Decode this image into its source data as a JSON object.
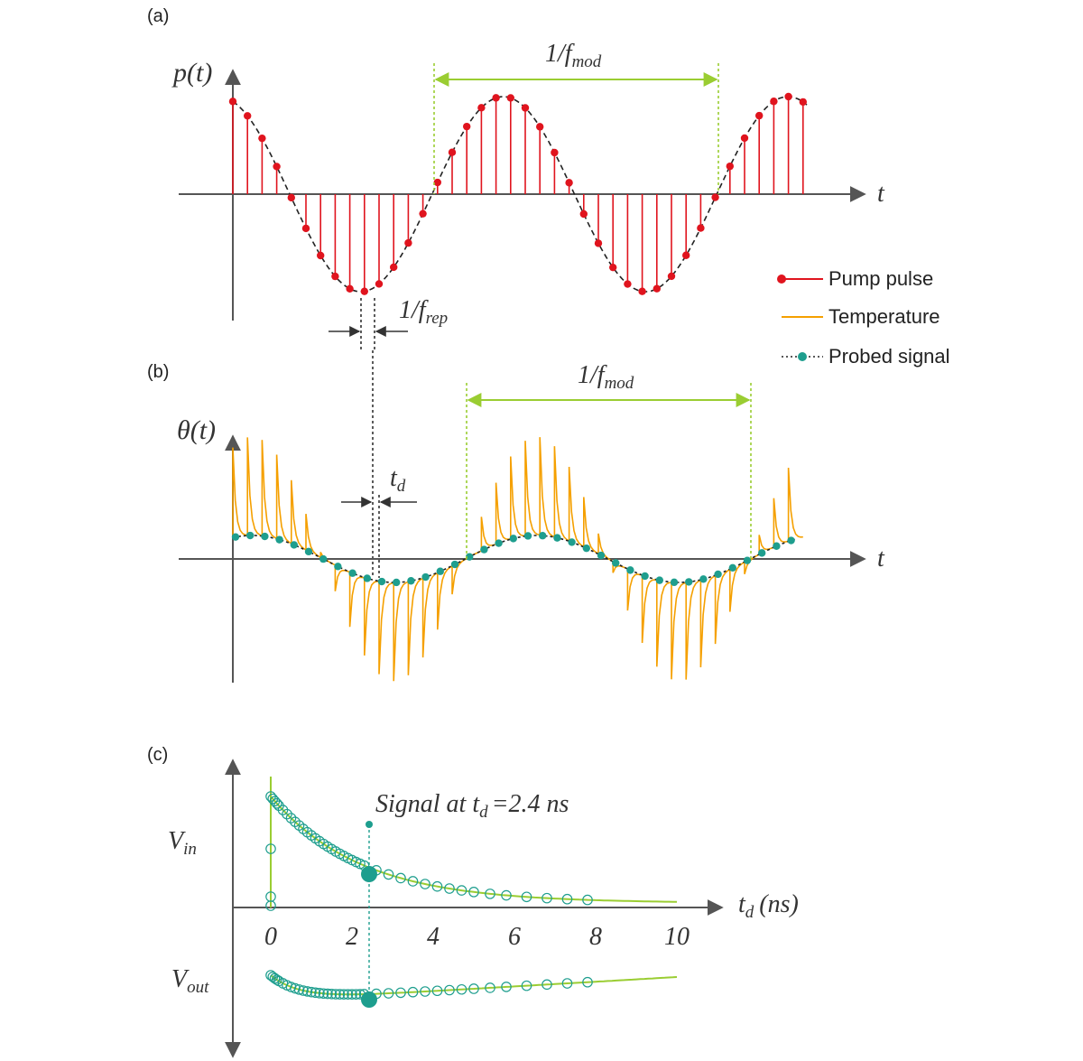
{
  "panels": {
    "a": {
      "label": "(a)",
      "y_label": "p(t)",
      "x_label": "t",
      "mod_period": {
        "base": "1/f",
        "sub": "mod"
      },
      "rep_period": {
        "base": "1/f",
        "sub": "rep"
      }
    },
    "b": {
      "label": "(b)",
      "y_label": "θ(t)",
      "x_label": "t",
      "mod_period": {
        "base": "1/f",
        "sub": "mod"
      },
      "delay": {
        "base": "t",
        "sub": "d"
      }
    },
    "c": {
      "label": "(c)",
      "y_label_in": {
        "base": "V",
        "sub": "in"
      },
      "y_label_out": {
        "base": "V",
        "sub": "out"
      },
      "x_label": {
        "base": "t",
        "sub": "d",
        "rest": "(ns)"
      },
      "x_ticks": [
        "0",
        "2",
        "4",
        "6",
        "8",
        "10"
      ],
      "annotation": {
        "pre": "Signal at t",
        "sub": "d",
        "post": "=2.4 ns"
      }
    }
  },
  "legend": [
    {
      "label": "Pump pulse",
      "color": "#e0141e",
      "kind": "dot-line"
    },
    {
      "label": "Temperature",
      "color": "#f5a000",
      "kind": "line"
    },
    {
      "label": "Probed signal",
      "color": "#1e9e8e",
      "kind": "dotted-dot"
    }
  ],
  "colors": {
    "pump": "#e0141e",
    "temperature": "#f5a000",
    "probe": "#1e9e8e",
    "fit": "#9acd32",
    "mod_marker": "#9acd32",
    "axis": "#555555"
  },
  "chart_data": {
    "type": "scatter",
    "x_label": "t_d (ns)",
    "xlim": [
      0,
      10
    ],
    "x_ticks": [
      0,
      2,
      4,
      6,
      8,
      10
    ],
    "highlight_td_ns": 2.4,
    "series": [
      {
        "name": "V_in",
        "x": [
          0,
          0.2,
          0.4,
          0.6,
          0.8,
          1,
          1.5,
          2,
          2.4,
          3,
          3.5,
          4,
          4.5,
          5,
          5.5,
          6,
          6.5,
          7,
          7.5,
          7.8
        ]
      },
      {
        "name": "V_out",
        "x": [
          0,
          0.2,
          0.4,
          0.6,
          0.8,
          1,
          1.5,
          2,
          2.4,
          3,
          3.5,
          4,
          4.5,
          5,
          5.5,
          6,
          6.5,
          7,
          7.5,
          7.8
        ]
      }
    ]
  }
}
